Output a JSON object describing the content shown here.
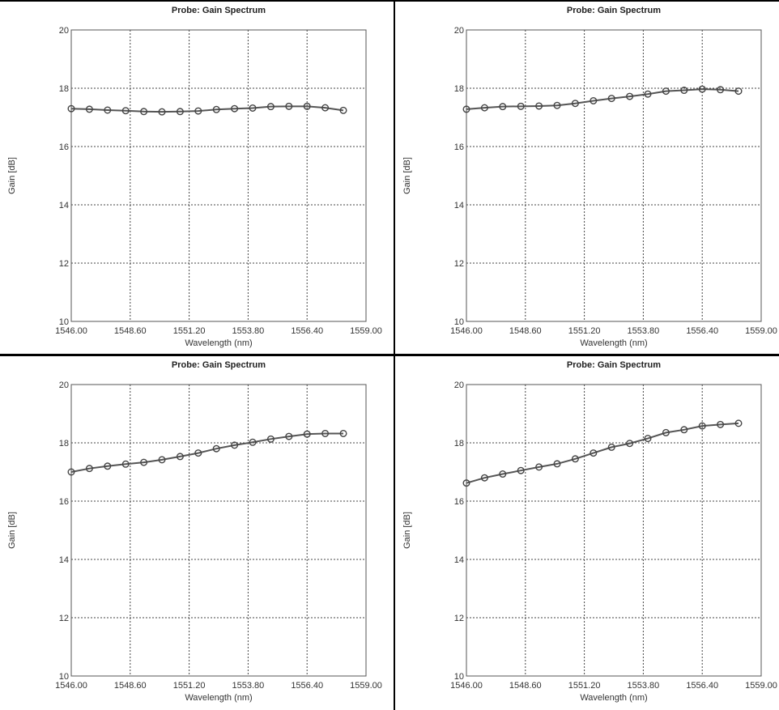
{
  "chart_data": [
    {
      "type": "line",
      "title": "Probe: Gain Spectrum",
      "xlabel": "Wavelength (nm)",
      "ylabel": "Gain [dB]",
      "xlim": [
        1546.0,
        1559.0
      ],
      "ylim": [
        10,
        20
      ],
      "xticks": [
        "1546.00",
        "1548.60",
        "1551.20",
        "1553.80",
        "1556.40",
        "1559.00"
      ],
      "yticks": [
        "10",
        "12",
        "14",
        "16",
        "18",
        "20"
      ],
      "grid": true,
      "series": [
        {
          "x": [
            1546.0,
            1546.8,
            1547.6,
            1548.4,
            1549.2,
            1550.0,
            1550.8,
            1551.6,
            1552.4,
            1553.2,
            1554.0,
            1554.8,
            1555.6,
            1556.4,
            1557.2,
            1558.0
          ],
          "y": [
            17.3,
            17.28,
            17.25,
            17.23,
            17.2,
            17.19,
            17.2,
            17.22,
            17.27,
            17.3,
            17.32,
            17.37,
            17.38,
            17.38,
            17.33,
            17.24
          ]
        }
      ]
    },
    {
      "type": "line",
      "title": "Probe: Gain Spectrum",
      "xlabel": "Wavelength (nm)",
      "ylabel": "Gain [dB]",
      "xlim": [
        1546.0,
        1559.0
      ],
      "ylim": [
        10,
        20
      ],
      "xticks": [
        "1546.00",
        "1548.60",
        "1551.20",
        "1553.80",
        "1556.40",
        "1559.00"
      ],
      "yticks": [
        "10",
        "12",
        "14",
        "16",
        "18",
        "20"
      ],
      "grid": true,
      "series": [
        {
          "x": [
            1546.0,
            1546.8,
            1547.6,
            1548.4,
            1549.2,
            1550.0,
            1550.8,
            1551.6,
            1552.4,
            1553.2,
            1554.0,
            1554.8,
            1555.6,
            1556.4,
            1557.2,
            1558.0
          ],
          "y": [
            17.28,
            17.33,
            17.37,
            17.38,
            17.39,
            17.41,
            17.48,
            17.57,
            17.65,
            17.72,
            17.8,
            17.9,
            17.93,
            17.97,
            17.95,
            17.9
          ]
        }
      ]
    },
    {
      "type": "line",
      "title": "Probe: Gain Spectrum",
      "xlabel": "Wavelength (nm)",
      "ylabel": "Gain [dB]",
      "xlim": [
        1546.0,
        1559.0
      ],
      "ylim": [
        10,
        20
      ],
      "xticks": [
        "1546.00",
        "1548.60",
        "1551.20",
        "1553.80",
        "1556.40",
        "1559.00"
      ],
      "yticks": [
        "10",
        "12",
        "14",
        "16",
        "18",
        "20"
      ],
      "grid": true,
      "series": [
        {
          "x": [
            1546.0,
            1546.8,
            1547.6,
            1548.4,
            1549.2,
            1550.0,
            1550.8,
            1551.6,
            1552.4,
            1553.2,
            1554.0,
            1554.8,
            1555.6,
            1556.4,
            1557.2,
            1558.0
          ],
          "y": [
            17.0,
            17.12,
            17.2,
            17.27,
            17.33,
            17.42,
            17.53,
            17.65,
            17.8,
            17.92,
            18.02,
            18.13,
            18.22,
            18.3,
            18.32,
            18.32
          ]
        }
      ]
    },
    {
      "type": "line",
      "title": "Probe: Gain Spectrum",
      "xlabel": "Wavelength (nm)",
      "ylabel": "Gain [dB]",
      "xlim": [
        1546.0,
        1559.0
      ],
      "ylim": [
        10,
        20
      ],
      "xticks": [
        "1546.00",
        "1548.60",
        "1551.20",
        "1553.80",
        "1556.40",
        "1559.00"
      ],
      "yticks": [
        "10",
        "12",
        "14",
        "16",
        "18",
        "20"
      ],
      "grid": true,
      "series": [
        {
          "x": [
            1546.0,
            1546.8,
            1547.6,
            1548.4,
            1549.2,
            1550.0,
            1550.8,
            1551.6,
            1552.4,
            1553.2,
            1554.0,
            1554.8,
            1555.6,
            1556.4,
            1557.2,
            1558.0
          ],
          "y": [
            16.62,
            16.8,
            16.93,
            17.05,
            17.17,
            17.28,
            17.45,
            17.65,
            17.85,
            17.98,
            18.15,
            18.35,
            18.45,
            18.58,
            18.63,
            18.67
          ]
        }
      ]
    }
  ]
}
